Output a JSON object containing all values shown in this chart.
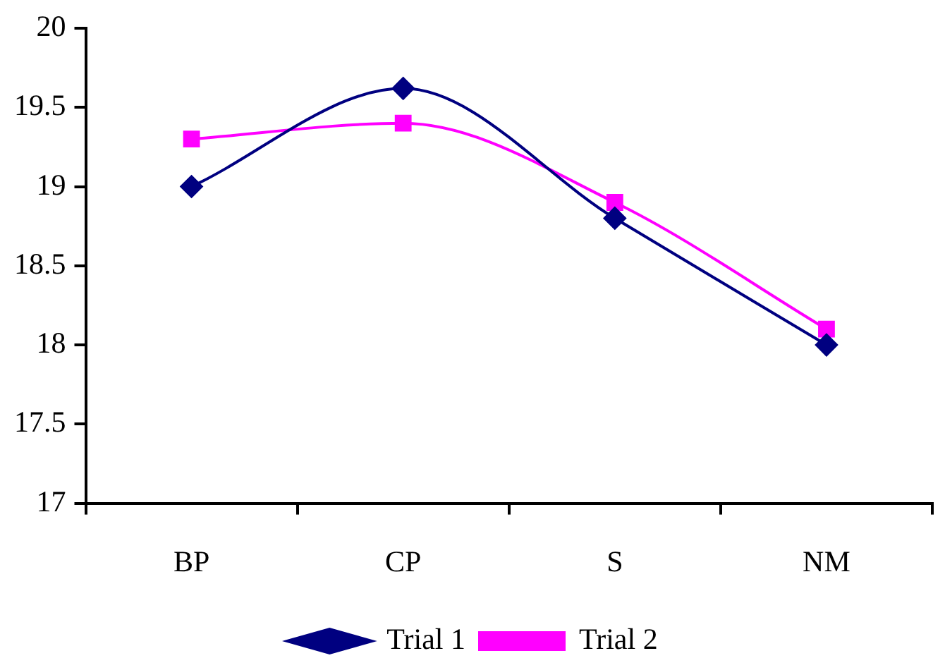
{
  "chart_data": {
    "type": "line",
    "categories": [
      "BP",
      "CP",
      "S",
      "NM"
    ],
    "series": [
      {
        "name": "Trial 1",
        "color": "#000080",
        "marker": "diamond",
        "values": [
          19.0,
          19.62,
          18.8,
          18.0
        ]
      },
      {
        "name": "Trial 2",
        "color": "#ff00ff",
        "marker": "square",
        "values": [
          19.3,
          19.4,
          18.9,
          18.1
        ]
      }
    ],
    "ylim": [
      17,
      20
    ],
    "yticks": [
      17,
      17.5,
      18,
      18.5,
      19,
      19.5,
      20
    ],
    "grid": false,
    "legend": "bottom",
    "line_style": "solid"
  }
}
